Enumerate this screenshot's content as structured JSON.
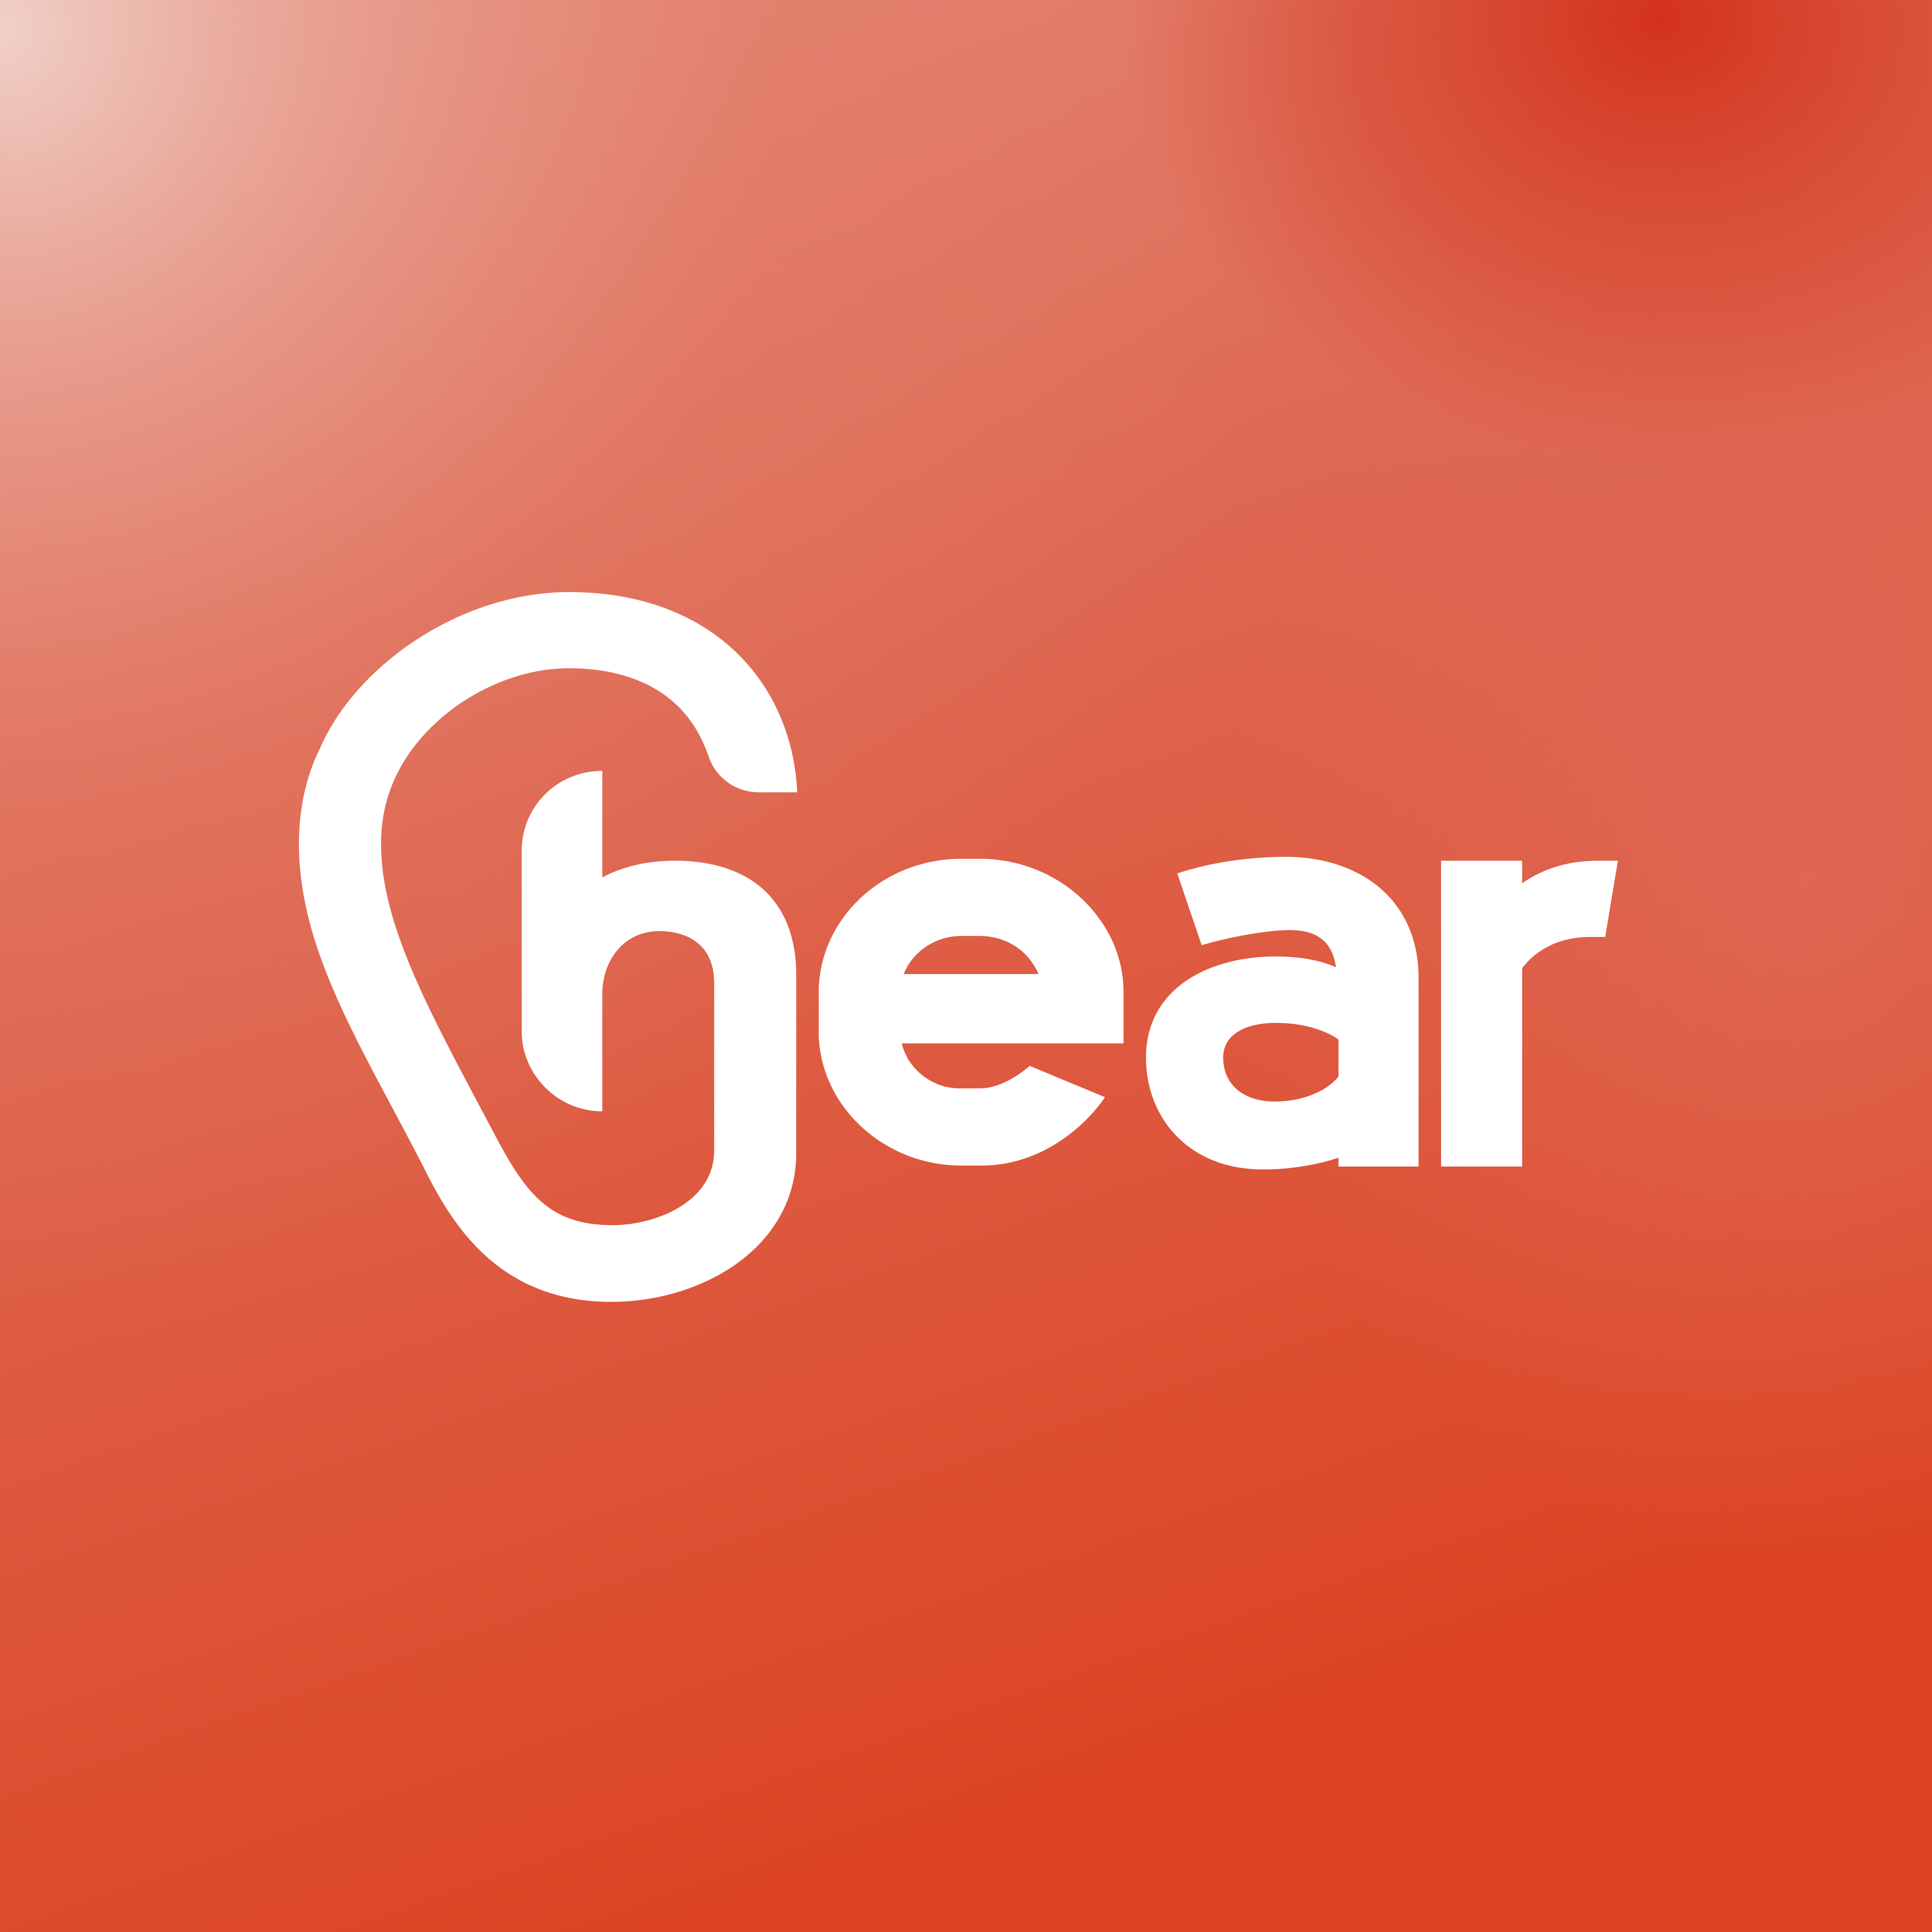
{
  "brand": {
    "name": "hear",
    "mark_color": "#FFFFFF"
  },
  "background": {
    "colors": {
      "highlight": "#EDC3B9",
      "peach": "#E4806C",
      "mid": "#DC5D45",
      "top_right": "#D4361F",
      "bottom": "#DC4726"
    }
  },
  "icons": {
    "logo": "ear-h-logo-icon"
  }
}
